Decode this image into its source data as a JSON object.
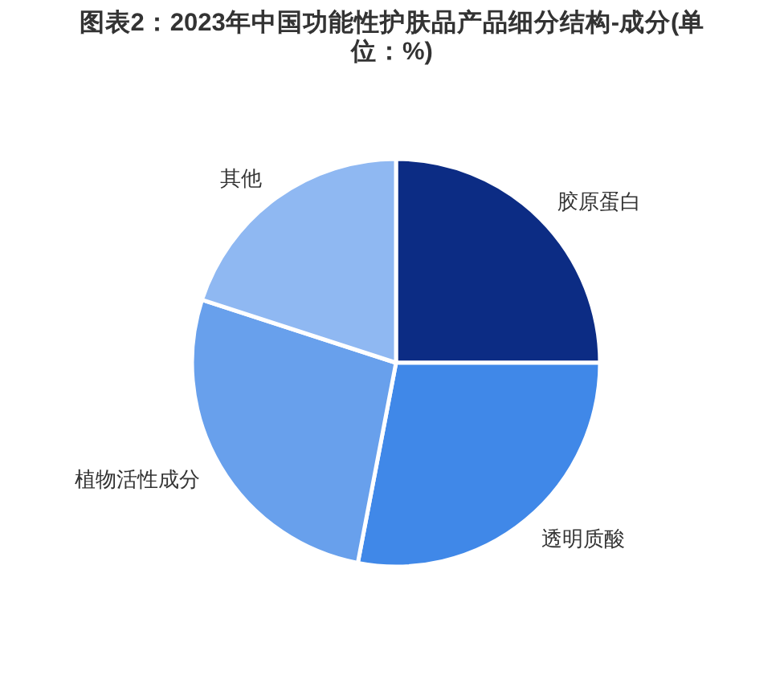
{
  "chart_data": {
    "type": "pie",
    "title": "图表2：2023年中国功能性护肤品产品细分结构-成分(单位：%)",
    "categories": [
      "胶原蛋白",
      "透明质酸",
      "植物活性成分",
      "其他"
    ],
    "values": [
      25,
      28,
      27,
      20
    ],
    "colors": [
      "#0c2c84",
      "#4088e8",
      "#68a0ec",
      "#8fb8f2"
    ]
  }
}
